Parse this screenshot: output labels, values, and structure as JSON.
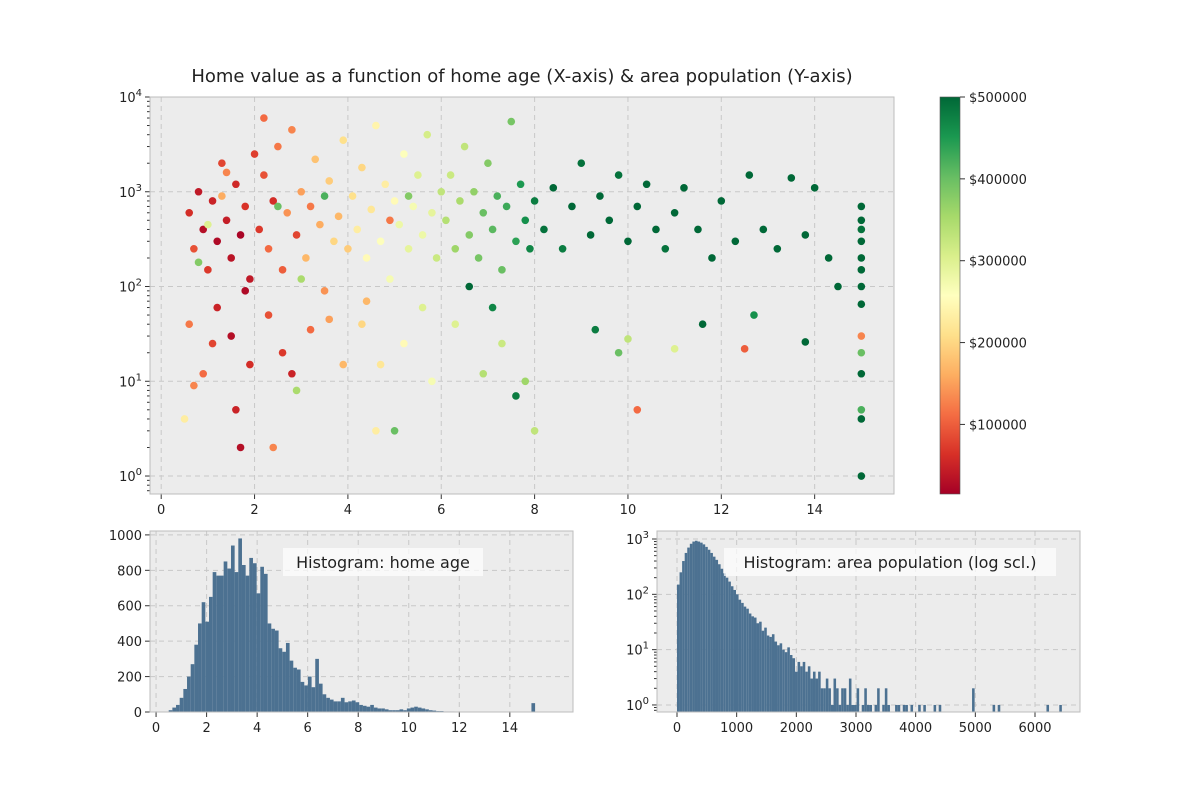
{
  "chart_data": [
    {
      "type": "scatter",
      "title": "Home value as a function of home age (X-axis) & area population (Y-axis)",
      "xlim": [
        -0.24,
        15.7
      ],
      "ylim": [
        0.646,
        10000
      ],
      "yscale": "log",
      "grid": true,
      "xticks": [
        "0",
        "2",
        "4",
        "6",
        "8",
        "10",
        "12",
        "14"
      ],
      "xtick_values": [
        0,
        2,
        4,
        6,
        8,
        10,
        12,
        14
      ],
      "yticks": [
        "10^0",
        "10^1",
        "10^2",
        "10^3",
        "10^4"
      ],
      "colormap": [
        "#a50026",
        "#d73027",
        "#f46d43",
        "#fdae61",
        "#fee08b",
        "#ffffbf",
        "#d9ef8b",
        "#a6d96a",
        "#66bd63",
        "#1a9850",
        "#006837"
      ],
      "colorbar": {
        "range": [
          15000,
          500000
        ],
        "ticks": [
          100000,
          200000,
          300000,
          400000,
          500000
        ],
        "tick_labels": [
          "$100000",
          "$200000",
          "$300000",
          "$400000",
          "$500000"
        ]
      },
      "point_fields": [
        "home_age",
        "area_population",
        "home_value"
      ],
      "points": [
        [
          0.6,
          600,
          60000
        ],
        [
          0.7,
          250,
          90000
        ],
        [
          0.8,
          1000,
          40000
        ],
        [
          0.9,
          400,
          30000
        ],
        [
          1.0,
          150,
          70000
        ],
        [
          1.1,
          800,
          50000
        ],
        [
          1.2,
          300,
          25000
        ],
        [
          1.3,
          2000,
          80000
        ],
        [
          1.4,
          500,
          45000
        ],
        [
          1.5,
          200,
          35000
        ],
        [
          1.6,
          1200,
          55000
        ],
        [
          1.7,
          350,
          20000
        ],
        [
          1.8,
          700,
          65000
        ],
        [
          1.9,
          120,
          40000
        ],
        [
          2.0,
          2500,
          75000
        ],
        [
          1.2,
          60,
          50000
        ],
        [
          1.5,
          30,
          30000
        ],
        [
          1.7,
          2,
          30000
        ],
        [
          1.6,
          5,
          50000
        ],
        [
          0.9,
          12,
          110000
        ],
        [
          1.3,
          900,
          160000
        ],
        [
          1.0,
          450,
          300000
        ],
        [
          0.8,
          180,
          380000
        ],
        [
          1.4,
          1600,
          130000
        ],
        [
          1.8,
          90,
          25000
        ],
        [
          0.6,
          40,
          120000
        ],
        [
          1.1,
          25,
          80000
        ],
        [
          1.9,
          15,
          60000
        ],
        [
          0.5,
          4,
          230000
        ],
        [
          0.7,
          9,
          130000
        ],
        [
          2.1,
          400,
          70000
        ],
        [
          2.2,
          1500,
          90000
        ],
        [
          2.3,
          250,
          110000
        ],
        [
          2.4,
          800,
          60000
        ],
        [
          2.5,
          3000,
          120000
        ],
        [
          2.6,
          150,
          100000
        ],
        [
          2.7,
          600,
          140000
        ],
        [
          2.8,
          4500,
          130000
        ],
        [
          2.9,
          350,
          80000
        ],
        [
          3.0,
          1000,
          150000
        ],
        [
          3.1,
          200,
          170000
        ],
        [
          3.2,
          700,
          120000
        ],
        [
          3.3,
          2200,
          180000
        ],
        [
          3.4,
          450,
          160000
        ],
        [
          3.5,
          90,
          140000
        ],
        [
          3.6,
          1300,
          190000
        ],
        [
          3.7,
          300,
          200000
        ],
        [
          3.8,
          550,
          170000
        ],
        [
          3.9,
          3500,
          210000
        ],
        [
          4.0,
          250,
          190000
        ],
        [
          2.3,
          50,
          90000
        ],
        [
          2.6,
          20,
          70000
        ],
        [
          2.4,
          2,
          130000
        ],
        [
          2.8,
          12,
          50000
        ],
        [
          3.2,
          35,
          110000
        ],
        [
          3.6,
          45,
          150000
        ],
        [
          3.9,
          15,
          170000
        ],
        [
          2.2,
          6000,
          110000
        ],
        [
          3.0,
          120,
          350000
        ],
        [
          2.5,
          700,
          400000
        ],
        [
          3.5,
          900,
          420000
        ],
        [
          2.9,
          8,
          350000
        ],
        [
          4.1,
          900,
          210000
        ],
        [
          4.2,
          400,
          230000
        ],
        [
          4.3,
          1800,
          200000
        ],
        [
          4.4,
          200,
          250000
        ],
        [
          4.5,
          650,
          220000
        ],
        [
          4.6,
          5000,
          240000
        ],
        [
          4.7,
          300,
          260000
        ],
        [
          4.8,
          1200,
          230000
        ],
        [
          4.9,
          120,
          270000
        ],
        [
          5.0,
          800,
          250000
        ],
        [
          5.1,
          450,
          280000
        ],
        [
          5.2,
          2500,
          260000
        ],
        [
          5.3,
          250,
          290000
        ],
        [
          5.4,
          700,
          270000
        ],
        [
          5.5,
          1500,
          300000
        ],
        [
          5.6,
          350,
          280000
        ],
        [
          5.7,
          4000,
          310000
        ],
        [
          5.8,
          600,
          290000
        ],
        [
          5.9,
          200,
          320000
        ],
        [
          6.0,
          1000,
          330000
        ],
        [
          4.3,
          40,
          200000
        ],
        [
          4.7,
          15,
          220000
        ],
        [
          4.6,
          3,
          230000
        ],
        [
          5.0,
          3,
          400000
        ],
        [
          5.2,
          25,
          250000
        ],
        [
          5.6,
          60,
          300000
        ],
        [
          4.4,
          70,
          170000
        ],
        [
          5.8,
          10,
          270000
        ],
        [
          4.9,
          500,
          120000
        ],
        [
          5.3,
          900,
          380000
        ],
        [
          6.1,
          500,
          340000
        ],
        [
          6.2,
          1500,
          320000
        ],
        [
          6.3,
          250,
          360000
        ],
        [
          6.4,
          800,
          350000
        ],
        [
          6.5,
          3000,
          330000
        ],
        [
          6.6,
          350,
          380000
        ],
        [
          6.7,
          1000,
          370000
        ],
        [
          6.8,
          200,
          390000
        ],
        [
          6.9,
          600,
          400000
        ],
        [
          7.0,
          2000,
          380000
        ],
        [
          7.1,
          400,
          410000
        ],
        [
          7.2,
          900,
          420000
        ],
        [
          7.3,
          150,
          400000
        ],
        [
          7.4,
          700,
          430000
        ],
        [
          7.5,
          5500,
          390000
        ],
        [
          7.6,
          300,
          440000
        ],
        [
          7.7,
          1200,
          450000
        ],
        [
          7.8,
          500,
          460000
        ],
        [
          7.9,
          250,
          470000
        ],
        [
          8.0,
          800,
          480000
        ],
        [
          6.3,
          40,
          300000
        ],
        [
          6.9,
          12,
          340000
        ],
        [
          7.3,
          25,
          320000
        ],
        [
          7.6,
          7,
          480000
        ],
        [
          7.8,
          10,
          360000
        ],
        [
          8.0,
          3,
          330000
        ],
        [
          6.6,
          100,
          500000
        ],
        [
          7.1,
          60,
          470000
        ],
        [
          8.2,
          400,
          490000
        ],
        [
          8.4,
          1100,
          500000
        ],
        [
          8.6,
          250,
          480000
        ],
        [
          8.8,
          700,
          500000
        ],
        [
          9.0,
          2000,
          490000
        ],
        [
          9.2,
          350,
          500000
        ],
        [
          9.4,
          900,
          500000
        ],
        [
          9.6,
          500,
          500000
        ],
        [
          9.8,
          1500,
          490000
        ],
        [
          10.0,
          300,
          500000
        ],
        [
          10.2,
          700,
          500000
        ],
        [
          10.4,
          1200,
          500000
        ],
        [
          10.6,
          400,
          500000
        ],
        [
          10.8,
          250,
          490000
        ],
        [
          11.0,
          600,
          500000
        ],
        [
          11.2,
          1100,
          500000
        ],
        [
          11.5,
          400,
          500000
        ],
        [
          11.8,
          200,
          500000
        ],
        [
          12.0,
          800,
          500000
        ],
        [
          12.3,
          300,
          500000
        ],
        [
          12.6,
          1500,
          500000
        ],
        [
          12.9,
          400,
          500000
        ],
        [
          13.2,
          250,
          500000
        ],
        [
          13.5,
          1400,
          500000
        ],
        [
          13.8,
          350,
          500000
        ],
        [
          14.0,
          1100,
          500000
        ],
        [
          14.3,
          200,
          500000
        ],
        [
          14.5,
          100,
          500000
        ],
        [
          9.3,
          35,
          480000
        ],
        [
          9.8,
          20,
          400000
        ],
        [
          10.2,
          5,
          110000
        ],
        [
          10.0,
          28,
          330000
        ],
        [
          11.0,
          22,
          300000
        ],
        [
          12.5,
          22,
          100000
        ],
        [
          13.8,
          26,
          500000
        ],
        [
          11.6,
          40,
          500000
        ],
        [
          12.7,
          50,
          460000
        ],
        [
          15,
          700,
          500000
        ],
        [
          15,
          500,
          500000
        ],
        [
          15,
          400,
          490000
        ],
        [
          15,
          300,
          500000
        ],
        [
          15,
          200,
          500000
        ],
        [
          15,
          150,
          500000
        ],
        [
          15,
          100,
          500000
        ],
        [
          15,
          65,
          500000
        ],
        [
          15,
          30,
          130000
        ],
        [
          15,
          20,
          400000
        ],
        [
          15,
          12,
          500000
        ],
        [
          15,
          5,
          420000
        ],
        [
          15,
          4,
          500000
        ],
        [
          15,
          1,
          500000
        ]
      ]
    },
    {
      "type": "bar",
      "annotation": "Histogram: home age",
      "xlim": [
        -0.24,
        16.5
      ],
      "ylim": [
        0,
        1022
      ],
      "grid": true,
      "xticks": [
        "0",
        "2",
        "4",
        "6",
        "8",
        "10",
        "12",
        "14"
      ],
      "xtick_values": [
        0,
        2,
        4,
        6,
        8,
        10,
        12,
        14
      ],
      "yticks": [
        "0",
        "200",
        "400",
        "600",
        "800",
        "1000"
      ],
      "ytick_values": [
        0,
        200,
        400,
        600,
        800,
        1000
      ],
      "color": "#4c7191",
      "bin_start": 0.5,
      "bin_width": 0.145,
      "counts": [
        10,
        25,
        40,
        80,
        130,
        200,
        270,
        380,
        500,
        620,
        510,
        650,
        790,
        770,
        770,
        850,
        810,
        940,
        790,
        980,
        830,
        770,
        870,
        840,
        670,
        820,
        780,
        500,
        470,
        460,
        360,
        340,
        390,
        290,
        250,
        240,
        170,
        150,
        200,
        140,
        300,
        160,
        100,
        80,
        70,
        60,
        60,
        80,
        55,
        60,
        65,
        55,
        40,
        35,
        30,
        40,
        25,
        20,
        20,
        15,
        10,
        10,
        10,
        15,
        10,
        20,
        25,
        30,
        25,
        20,
        15,
        10,
        8,
        5,
        5,
        3,
        3,
        3,
        2,
        2,
        2,
        2,
        2,
        1,
        1,
        1,
        1,
        1,
        1,
        1,
        0,
        0,
        0,
        0,
        0,
        0,
        0,
        0,
        0,
        50
      ]
    },
    {
      "type": "bar",
      "annotation": "Histogram: area population (log scl.)",
      "xlim": [
        -335,
        6754
      ],
      "ylim": [
        0.746,
        1396
      ],
      "yscale": "log",
      "grid": true,
      "xticks": [
        "0",
        "1000",
        "2000",
        "3000",
        "4000",
        "5000",
        "6000"
      ],
      "xtick_values": [
        0,
        1000,
        2000,
        3000,
        4000,
        5000,
        6000
      ],
      "yticks": [
        "10^0",
        "10^1",
        "10^2",
        "10^3"
      ],
      "color": "#4c7191",
      "bin_start": 0,
      "bin_width": 43,
      "counts": [
        150,
        250,
        400,
        560,
        700,
        820,
        900,
        930,
        900,
        860,
        800,
        720,
        640,
        560,
        480,
        420,
        350,
        290,
        240,
        200,
        170,
        140,
        120,
        100,
        80,
        70,
        60,
        55,
        45,
        40,
        38,
        30,
        32,
        22,
        25,
        18,
        17,
        19,
        14,
        12,
        13,
        10,
        9,
        11,
        8,
        7,
        4,
        6,
        5,
        6,
        4,
        5,
        3,
        4,
        3,
        4,
        2,
        2,
        3,
        2,
        1,
        3,
        2,
        1,
        2,
        2,
        1,
        3,
        1,
        1,
        2,
        0,
        1,
        2,
        1,
        1,
        0,
        1,
        2,
        0,
        1,
        2,
        1,
        0,
        0,
        1,
        1,
        0,
        1,
        1,
        0,
        1,
        0,
        0,
        1,
        0,
        1,
        0,
        0,
        0,
        1,
        0,
        1,
        0,
        0,
        0,
        0,
        0,
        0,
        0,
        0,
        0,
        0,
        0,
        0,
        2,
        0,
        0,
        0,
        0,
        0,
        0,
        0,
        1,
        0,
        1,
        0,
        0,
        0,
        0,
        0,
        0,
        0,
        0,
        0,
        0,
        0,
        0,
        0,
        0,
        0,
        0,
        0,
        0,
        1,
        0,
        0,
        0,
        0,
        1
      ]
    }
  ]
}
